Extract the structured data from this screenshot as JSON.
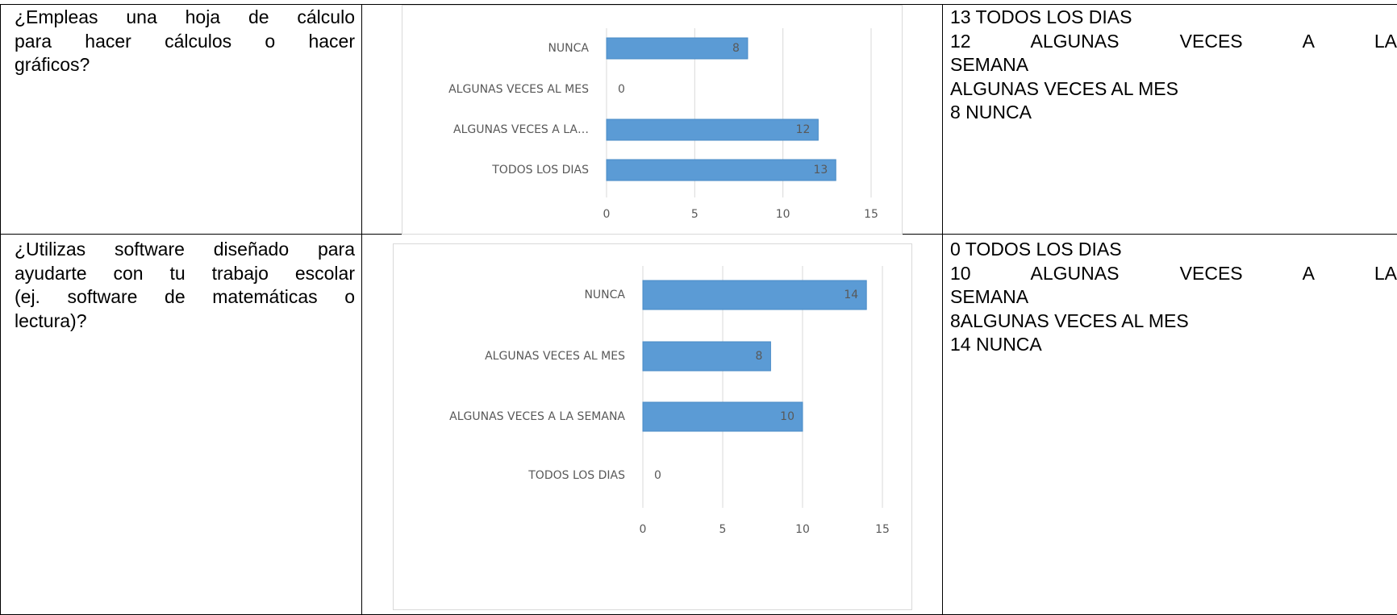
{
  "table": {
    "rows": [
      {
        "question": [
          "¿Empleas una hoja de cálculo",
          "para hacer cálculos o hacer",
          "gráficos?"
        ],
        "notes": [
          "13 TODOS LOS DIAS",
          "12 ALGUNAS VECES A LA",
          "SEMANA",
          "ALGUNAS VECES AL MES",
          "8 NUNCA"
        ]
      },
      {
        "question": [
          "¿Utilizas software diseñado para",
          "ayudarte con tu trabajo escolar",
          "(ej. software de matemáticas o",
          "lectura)?"
        ],
        "notes": [
          "0 TODOS LOS DIAS",
          "10 ALGUNAS VECES A LA",
          "SEMANA",
          "8ALGUNAS VECES AL MES",
          "14 NUNCA"
        ]
      }
    ]
  },
  "chart_data": [
    {
      "type": "bar",
      "orientation": "horizontal",
      "categories": [
        "NUNCA",
        "ALGUNAS VECES AL MES",
        "ALGUNAS VECES A LA…",
        "TODOS LOS DIAS"
      ],
      "values": [
        8,
        0,
        12,
        13
      ],
      "color": "#5b9bd5",
      "xlim": [
        0,
        15
      ],
      "xticks": [
        0,
        5,
        10,
        15
      ],
      "grid": true
    },
    {
      "type": "bar",
      "orientation": "horizontal",
      "categories": [
        "NUNCA",
        "ALGUNAS VECES AL MES",
        "ALGUNAS VECES A LA SEMANA",
        "TODOS LOS DIAS"
      ],
      "values": [
        14,
        8,
        10,
        0
      ],
      "color": "#5b9bd5",
      "xlim": [
        0,
        15
      ],
      "xticks": [
        0,
        5,
        10,
        15
      ],
      "grid": true
    }
  ]
}
